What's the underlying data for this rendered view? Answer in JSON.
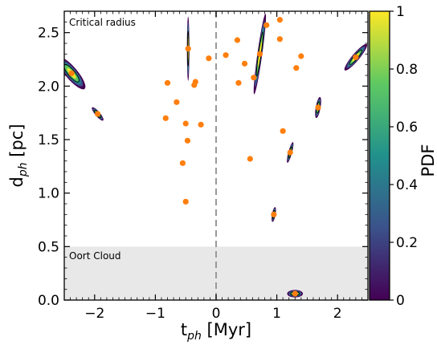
{
  "chart_data": {
    "type": "scatter",
    "xlabel": "t",
    "xlabel_sub": "ph",
    "xlabel_unit": " [Myr]",
    "ylabel": "d",
    "ylabel_sub": "ph",
    "ylabel_unit": " [pc]",
    "xlim": [
      -2.5,
      2.5
    ],
    "ylim": [
      0.0,
      2.7
    ],
    "xticks": [
      -2,
      -1,
      0,
      1,
      2
    ],
    "xtick_labels": [
      "−2",
      "−1",
      "0",
      "1",
      "2"
    ],
    "yticks": [
      0.0,
      0.5,
      1.0,
      1.5,
      2.0,
      2.5
    ],
    "ytick_labels": [
      "0.0",
      "0.5",
      "1.0",
      "1.5",
      "2.0",
      "2.5"
    ],
    "annotations": {
      "critical_radius": "Critical radius",
      "oort_cloud": "Oort Cloud"
    },
    "oort_cloud_region": [
      0.0,
      0.5
    ],
    "reference_line_x": 0,
    "colorbar": {
      "label": "PDF",
      "range": [
        0,
        1
      ],
      "ticks": [
        0,
        0.2,
        0.4,
        0.6,
        0.8,
        1
      ],
      "tick_labels": [
        "0",
        "0.2",
        "0.4",
        "0.6",
        "0.8",
        "1"
      ],
      "colormap": [
        "#440154",
        "#3b528b",
        "#21918c",
        "#5ec962",
        "#fde725"
      ]
    },
    "marker_color": "#ff7f0e",
    "points": [
      {
        "x": -2.38,
        "y": 2.12,
        "blob": {
          "rx": 0.1,
          "ry": 0.19,
          "angle": -40,
          "size": "large"
        }
      },
      {
        "x": -1.95,
        "y": 1.74,
        "blob": {
          "rx": 0.04,
          "ry": 0.08,
          "angle": -40,
          "size": "medium"
        }
      },
      {
        "x": -0.8,
        "y": 2.03
      },
      {
        "x": -0.83,
        "y": 1.7
      },
      {
        "x": -0.65,
        "y": 1.85
      },
      {
        "x": -0.55,
        "y": 1.28
      },
      {
        "x": -0.5,
        "y": 1.65
      },
      {
        "x": -0.47,
        "y": 1.49
      },
      {
        "x": -0.5,
        "y": 0.92
      },
      {
        "x": -0.46,
        "y": 2.35,
        "blob": {
          "rx": 0.02,
          "ry": 0.3,
          "angle": 0,
          "size": "streak"
        }
      },
      {
        "x": -0.36,
        "y": 2.01
      },
      {
        "x": -0.34,
        "y": 2.04
      },
      {
        "x": -0.25,
        "y": 1.64
      },
      {
        "x": -0.12,
        "y": 2.26
      },
      {
        "x": 0.16,
        "y": 2.29
      },
      {
        "x": 0.35,
        "y": 2.43
      },
      {
        "x": 0.37,
        "y": 2.03
      },
      {
        "x": 0.47,
        "y": 2.21
      },
      {
        "x": 0.62,
        "y": 2.08
      },
      {
        "x": 0.56,
        "y": 1.32
      },
      {
        "x": 0.72,
        "y": 2.3,
        "blob": {
          "rx": 0.04,
          "ry": 0.38,
          "angle": 8,
          "size": "streak"
        }
      },
      {
        "x": 0.83,
        "y": 2.57
      },
      {
        "x": 1.05,
        "y": 2.44
      },
      {
        "x": 1.05,
        "y": 2.62
      },
      {
        "x": 1.1,
        "y": 1.58
      },
      {
        "x": 1.22,
        "y": 1.38,
        "blob": {
          "rx": 0.03,
          "ry": 0.1,
          "angle": 15,
          "size": "medium"
        }
      },
      {
        "x": 0.95,
        "y": 0.8,
        "blob": {
          "rx": 0.03,
          "ry": 0.07,
          "angle": 10,
          "size": "medium"
        }
      },
      {
        "x": 1.3,
        "y": 0.06,
        "blob": {
          "rx": 0.13,
          "ry": 0.035,
          "angle": 0,
          "size": "flat"
        }
      },
      {
        "x": 1.32,
        "y": 2.17
      },
      {
        "x": 1.4,
        "y": 2.28
      },
      {
        "x": 1.68,
        "y": 1.8,
        "blob": {
          "rx": 0.04,
          "ry": 0.1,
          "angle": 10,
          "size": "medium"
        }
      },
      {
        "x": 2.3,
        "y": 2.27,
        "blob": {
          "rx": 0.06,
          "ry": 0.16,
          "angle": 40,
          "size": "large"
        }
      }
    ]
  }
}
